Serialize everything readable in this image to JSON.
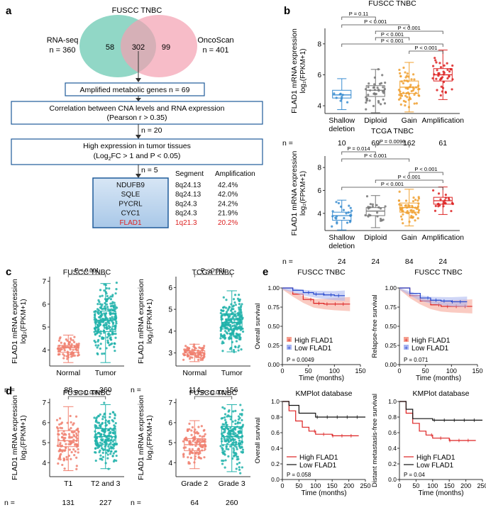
{
  "colors": {
    "teal": "#76cdb8",
    "pink": "#f4a0b0",
    "blue": "#3a8dd0",
    "grey": "#777777",
    "orange": "#f0a030",
    "red": "#dd2222",
    "salmon": "#f08070",
    "turq": "#20b2aa",
    "navy": "#2244cc",
    "box": "#1f5b9a"
  },
  "panel_a": {
    "label": "a",
    "title": "FUSCC TNBC",
    "venn": {
      "left_label": "RNA-seq",
      "left_n": "n = 360",
      "right_label": "OncoScan",
      "right_n": "n = 401",
      "left_only": "58",
      "overlap": "302",
      "right_only": "99"
    },
    "step1": "Amplified metabolic genes  n = 69",
    "step2_line1": "Correlation between CNA levels and RNA expression",
    "step2_line2": "(Pearson r > 0.35)",
    "step2_n": "n = 20",
    "step3_line1": "High expression in tumor tissues",
    "step3_line2a": "(Log",
    "step3_sub": "2",
    "step3_line2b": "FC > 1 and P < 0.05)",
    "step3_n": "n = 5",
    "table_headers": [
      "Segment",
      "Amplification"
    ],
    "genes": [
      {
        "name": "NDUFB9",
        "segment": "8q24.13",
        "amp": "42.4%"
      },
      {
        "name": "SQLE",
        "segment": "8q24.13",
        "amp": "42.0%"
      },
      {
        "name": "PYCRL",
        "segment": "8q24.3",
        "amp": "24.2%"
      },
      {
        "name": "CYC1",
        "segment": "8q24.3",
        "amp": "21.9%"
      },
      {
        "name": "FLAD1",
        "segment": "1q21.3",
        "amp": "20.2%"
      }
    ]
  },
  "panel_b": {
    "label": "b",
    "ylabel1": "FLAD1 mRNA expression",
    "ylabel2": "log₂(FPKM+1)",
    "n_prefix": "n =",
    "plots": [
      {
        "title": "FUSCC TNBC",
        "yticks": [
          "4",
          "6",
          "8"
        ],
        "cats": [
          [
            "Shallow",
            "deletion"
          ],
          [
            "Diploid",
            ""
          ],
          [
            "Gain",
            ""
          ],
          [
            "Amplification",
            ""
          ]
        ],
        "ns": [
          "10",
          "69",
          "162",
          "61"
        ],
        "pvals": [
          "P = 0.11",
          "P < 0.001",
          "P < 0.001",
          "P < 0.001",
          "P < 0.001",
          "P < 0.001"
        ]
      },
      {
        "title": "TCGA TNBC",
        "yticks": [
          "4",
          "6",
          "8"
        ],
        "cats": [
          [
            "Shallow",
            "deletion"
          ],
          [
            "Diploid",
            ""
          ],
          [
            "Gain",
            ""
          ],
          [
            "Amplification",
            ""
          ]
        ],
        "ns": [
          "24",
          "24",
          "84",
          "24"
        ],
        "pvals": [
          "P = 0.0096",
          "P = 0.014",
          "P < 0.001",
          "P < 0.001",
          "P < 0.001",
          "P < 0.001"
        ]
      }
    ]
  },
  "panel_c": {
    "label": "c",
    "ylabel1": "FLAD1 mRNA expression",
    "ylabel2": "log₂(FPKM+1)",
    "n_prefix": "n =",
    "plots": [
      {
        "title": "FUSCC TNBC",
        "yticks": [
          "4",
          "5",
          "6",
          "7"
        ],
        "cats": [
          "Normal",
          "Tumor"
        ],
        "ns": [
          "88",
          "360"
        ],
        "pval": "P < 0.001"
      },
      {
        "title": "TCGA TNBC",
        "yticks": [
          "3",
          "4",
          "5",
          "6"
        ],
        "cats": [
          "Normal",
          "Tumor"
        ],
        "ns": [
          "114",
          "156"
        ],
        "pval": "P < 0.001"
      }
    ]
  },
  "panel_d": {
    "label": "d",
    "ylabel1": "FLAD1 mRNA expression",
    "ylabel2": "log₂(FPKM+1)",
    "n_prefix": "n =",
    "plots": [
      {
        "title": "FUSCC TNBC",
        "yticks": [
          "4",
          "5",
          "6",
          "7"
        ],
        "cats": [
          "T1",
          "T2 and 3"
        ],
        "ns": [
          "131",
          "227"
        ],
        "pval": "P = 0.036"
      },
      {
        "title": "FUSCC TNBC",
        "yticks": [
          "4",
          "5",
          "6",
          "7"
        ],
        "cats": [
          "Grade 2",
          "Grade 3"
        ],
        "ns": [
          "64",
          "260"
        ],
        "pval": "P < 0.001"
      }
    ]
  },
  "panel_e": {
    "label": "e",
    "plots": [
      {
        "title": "FUSCC TNBC",
        "ylabel": "Overall survival",
        "xlabel": "Time (months)",
        "yticks": [
          "0.00",
          "0.25",
          "0.50",
          "0.75",
          "1.00"
        ],
        "xticks": [
          "0",
          "50",
          "100",
          "150"
        ],
        "legend": [
          "High FLAD1",
          "Low FLAD1"
        ],
        "pval": "P = 0.0049"
      },
      {
        "title": "FUSCC TNBC",
        "ylabel": "Relapse-free survival",
        "xlabel": "Time (months)",
        "yticks": [
          "0.00",
          "0.25",
          "0.50",
          "0.75",
          "1.00"
        ],
        "xticks": [
          "0",
          "50",
          "100",
          "150"
        ],
        "legend": [
          "High FLAD1",
          "Low FLAD1"
        ],
        "pval": "P = 0.071"
      },
      {
        "title": "KMPlot database",
        "ylabel": "Overall survival",
        "xlabel": "Time (months)",
        "yticks": [
          "0.0",
          "0.2",
          "0.4",
          "0.6",
          "0.8",
          "1.0"
        ],
        "xticks": [
          "0",
          "50",
          "100",
          "150",
          "200",
          "250"
        ],
        "legend": [
          "High FLAD1",
          "Low FLAD1"
        ],
        "pval": "P = 0.058"
      },
      {
        "title": "KMPlot database",
        "ylabel": "Distant metastasis-free survival",
        "xlabel": "Time (months)",
        "yticks": [
          "0.0",
          "0.2",
          "0.4",
          "0.6",
          "0.8",
          "1.0"
        ],
        "xticks": [
          "0",
          "50",
          "100",
          "150",
          "200",
          "250"
        ],
        "legend": [
          "High FLAD1",
          "Low FLAD1"
        ],
        "pval": "P = 0.04"
      }
    ]
  },
  "chart_data": [
    {
      "type": "box",
      "panel": "b1",
      "title": "FUSCC TNBC",
      "ylabel": "FLAD1 mRNA expression log2(FPKM+1)",
      "categories": [
        "Shallow deletion",
        "Diploid",
        "Gain",
        "Amplification"
      ],
      "medians": [
        4.7,
        5.0,
        5.2,
        6.0
      ],
      "q1": [
        4.5,
        4.6,
        4.8,
        5.6
      ],
      "q3": [
        5.0,
        5.3,
        5.6,
        6.4
      ],
      "ylim": [
        3.5,
        9
      ]
    },
    {
      "type": "box",
      "panel": "b2",
      "title": "TCGA TNBC",
      "ylabel": "FLAD1 mRNA expression log2(FPKM+1)",
      "categories": [
        "Shallow deletion",
        "Diploid",
        "Gain",
        "Amplification"
      ],
      "medians": [
        3.8,
        4.2,
        4.5,
        5.1
      ],
      "q1": [
        3.4,
        3.8,
        4.1,
        4.8
      ],
      "q3": [
        4.1,
        4.5,
        4.9,
        5.4
      ],
      "ylim": [
        2.5,
        9
      ]
    },
    {
      "type": "box",
      "panel": "c1",
      "title": "FUSCC TNBC",
      "categories": [
        "Normal",
        "Tumor"
      ],
      "medians": [
        4.1,
        5.3
      ],
      "q1": [
        3.9,
        4.8
      ],
      "q3": [
        4.2,
        5.7
      ],
      "ylim": [
        3.3,
        7.2
      ]
    },
    {
      "type": "box",
      "panel": "c2",
      "title": "TCGA TNBC",
      "categories": [
        "Normal",
        "Tumor"
      ],
      "medians": [
        3.0,
        4.4
      ],
      "q1": [
        2.9,
        4.1
      ],
      "q3": [
        3.1,
        4.8
      ],
      "ylim": [
        2.4,
        6.5
      ]
    },
    {
      "type": "box",
      "panel": "d1",
      "title": "FUSCC TNBC",
      "categories": [
        "T1",
        "T2 and 3"
      ],
      "medians": [
        5.1,
        5.3
      ],
      "q1": [
        4.8,
        4.9
      ],
      "q3": [
        5.6,
        5.7
      ],
      "ylim": [
        3.3,
        7.2
      ]
    },
    {
      "type": "box",
      "panel": "d2",
      "title": "FUSCC TNBC",
      "categories": [
        "Grade 2",
        "Grade 3"
      ],
      "medians": [
        4.9,
        5.3
      ],
      "q1": [
        4.6,
        4.9
      ],
      "q3": [
        5.2,
        5.8
      ],
      "ylim": [
        3.3,
        7.2
      ]
    },
    {
      "type": "line",
      "panel": "e1",
      "title": "FUSCC TNBC",
      "series": [
        {
          "name": "High FLAD1",
          "x": [
            0,
            20,
            40,
            60,
            80,
            100,
            130
          ],
          "y": [
            1.0,
            0.92,
            0.85,
            0.8,
            0.79,
            0.79,
            0.79
          ]
        },
        {
          "name": "Low FLAD1",
          "x": [
            0,
            20,
            40,
            60,
            80,
            100,
            120
          ],
          "y": [
            1.0,
            0.97,
            0.94,
            0.92,
            0.91,
            0.9,
            0.9
          ]
        }
      ]
    },
    {
      "type": "line",
      "panel": "e2",
      "title": "FUSCC TNBC",
      "series": [
        {
          "name": "High FLAD1",
          "x": [
            0,
            20,
            40,
            60,
            80,
            100,
            140
          ],
          "y": [
            1.0,
            0.9,
            0.83,
            0.78,
            0.76,
            0.76,
            0.76
          ]
        },
        {
          "name": "Low FLAD1",
          "x": [
            0,
            20,
            40,
            60,
            80,
            100,
            130
          ],
          "y": [
            1.0,
            0.93,
            0.87,
            0.84,
            0.83,
            0.82,
            0.82
          ]
        }
      ]
    },
    {
      "type": "line",
      "panel": "e3",
      "title": "KMPlot database",
      "series": [
        {
          "name": "High FLAD1",
          "x": [
            0,
            20,
            40,
            60,
            80,
            100,
            150,
            230
          ],
          "y": [
            1.0,
            0.88,
            0.75,
            0.67,
            0.62,
            0.58,
            0.56,
            0.56
          ]
        },
        {
          "name": "Low FLAD1",
          "x": [
            0,
            20,
            50,
            100,
            150,
            250
          ],
          "y": [
            1.0,
            0.95,
            0.85,
            0.8,
            0.8,
            0.8
          ]
        }
      ]
    },
    {
      "type": "line",
      "panel": "e4",
      "title": "KMPlot database",
      "series": [
        {
          "name": "High FLAD1",
          "x": [
            0,
            20,
            40,
            60,
            80,
            100,
            150,
            230
          ],
          "y": [
            1.0,
            0.85,
            0.72,
            0.62,
            0.57,
            0.53,
            0.5,
            0.5
          ]
        },
        {
          "name": "Low FLAD1",
          "x": [
            0,
            20,
            40,
            100,
            200,
            250
          ],
          "y": [
            1.0,
            0.9,
            0.78,
            0.76,
            0.76,
            0.76
          ]
        }
      ]
    }
  ]
}
